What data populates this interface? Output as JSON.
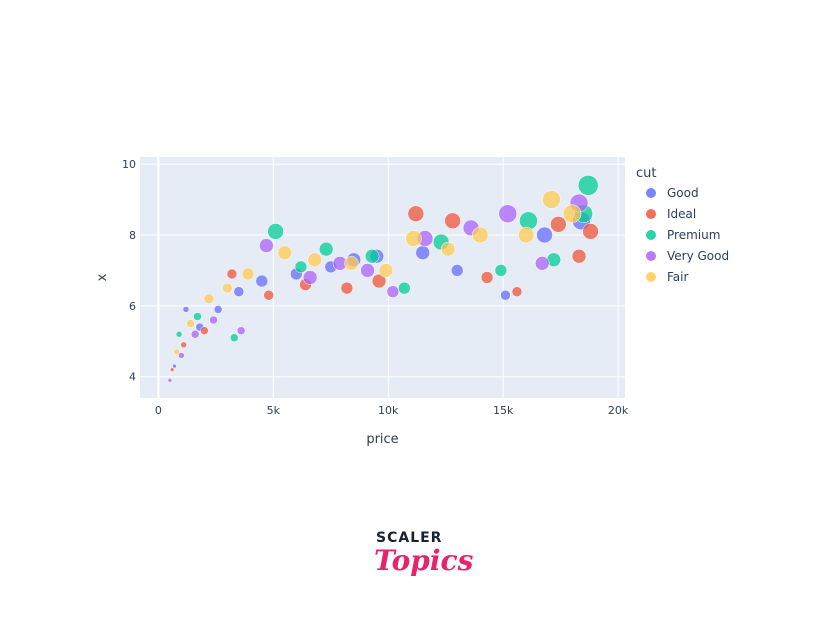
{
  "chart_data": {
    "type": "scatter",
    "title": "",
    "xlabel": "price",
    "ylabel": "x",
    "xlim": [
      -800,
      20300
    ],
    "ylim": [
      3.4,
      10.2
    ],
    "x_ticks": [
      0,
      5000,
      10000,
      15000,
      20000
    ],
    "x_tick_labels": [
      "0",
      "5k",
      "10k",
      "15k",
      "20k"
    ],
    "y_ticks": [
      4,
      6,
      8,
      10
    ],
    "y_tick_labels": [
      "4",
      "6",
      "8",
      "10"
    ],
    "grid": true,
    "legend": {
      "title": "cut",
      "position": "right"
    },
    "bubble_size_note": "marker size varies per point",
    "series": [
      {
        "name": "Good",
        "color": "#636efa",
        "points": [
          [
            700,
            4.3,
            2
          ],
          [
            1200,
            5.9,
            3
          ],
          [
            1800,
            5.4,
            4
          ],
          [
            2600,
            5.9,
            4
          ],
          [
            3500,
            6.4,
            5
          ],
          [
            4500,
            6.7,
            6
          ],
          [
            6000,
            6.9,
            6
          ],
          [
            7500,
            7.1,
            6
          ],
          [
            8500,
            7.3,
            7
          ],
          [
            9500,
            7.4,
            7
          ],
          [
            11500,
            7.5,
            7
          ],
          [
            13000,
            7.0,
            6
          ],
          [
            15100,
            6.3,
            5
          ],
          [
            16800,
            8.0,
            8
          ],
          [
            18400,
            8.4,
            9
          ]
        ]
      },
      {
        "name": "Ideal",
        "color": "#ef553b",
        "points": [
          [
            600,
            4.2,
            2
          ],
          [
            1100,
            4.9,
            3
          ],
          [
            2000,
            5.3,
            4
          ],
          [
            3200,
            6.9,
            5
          ],
          [
            4800,
            6.3,
            5
          ],
          [
            6400,
            6.6,
            6
          ],
          [
            8200,
            6.5,
            6
          ],
          [
            9600,
            6.7,
            7
          ],
          [
            11200,
            8.6,
            8
          ],
          [
            12800,
            8.4,
            8
          ],
          [
            14300,
            6.8,
            6
          ],
          [
            15600,
            6.4,
            5
          ],
          [
            17400,
            8.3,
            8
          ],
          [
            18300,
            7.4,
            7
          ],
          [
            18800,
            8.1,
            8
          ]
        ]
      },
      {
        "name": "Premium",
        "color": "#00cc96",
        "points": [
          [
            900,
            5.2,
            3
          ],
          [
            1700,
            5.7,
            4
          ],
          [
            3300,
            5.1,
            4
          ],
          [
            5100,
            8.1,
            8
          ],
          [
            6200,
            7.1,
            6
          ],
          [
            7300,
            7.6,
            7
          ],
          [
            9300,
            7.4,
            7
          ],
          [
            10700,
            6.5,
            6
          ],
          [
            12300,
            7.8,
            8
          ],
          [
            14900,
            7.0,
            6
          ],
          [
            16100,
            8.4,
            9
          ],
          [
            17200,
            7.3,
            7
          ],
          [
            18500,
            8.6,
            9
          ],
          [
            18700,
            9.4,
            10
          ]
        ]
      },
      {
        "name": "Very Good",
        "color": "#ab63fa",
        "points": [
          [
            500,
            3.9,
            2
          ],
          [
            1000,
            4.6,
            3
          ],
          [
            1600,
            5.2,
            4
          ],
          [
            2400,
            5.6,
            4
          ],
          [
            3600,
            5.3,
            4
          ],
          [
            4700,
            7.7,
            7
          ],
          [
            6600,
            6.8,
            7
          ],
          [
            7900,
            7.2,
            7
          ],
          [
            9100,
            7.0,
            7
          ],
          [
            10200,
            6.4,
            6
          ],
          [
            11600,
            7.9,
            8
          ],
          [
            13600,
            8.2,
            8
          ],
          [
            15200,
            8.6,
            9
          ],
          [
            16700,
            7.2,
            7
          ],
          [
            18300,
            8.9,
            9
          ]
        ]
      },
      {
        "name": "Fair",
        "color": "#fecb52",
        "points": [
          [
            800,
            4.7,
            3
          ],
          [
            1400,
            5.5,
            4
          ],
          [
            2200,
            6.2,
            5
          ],
          [
            3000,
            6.5,
            5
          ],
          [
            3900,
            6.9,
            6
          ],
          [
            5500,
            7.5,
            7
          ],
          [
            6800,
            7.3,
            7
          ],
          [
            8400,
            7.2,
            7
          ],
          [
            9900,
            7.0,
            7
          ],
          [
            11100,
            7.9,
            8
          ],
          [
            12600,
            7.6,
            7
          ],
          [
            14000,
            8.0,
            8
          ],
          [
            16000,
            8.0,
            8
          ],
          [
            17100,
            9.0,
            9
          ],
          [
            18000,
            8.6,
            9
          ]
        ]
      }
    ]
  },
  "branding": {
    "top": "SCALER",
    "bottom": "Topics"
  }
}
